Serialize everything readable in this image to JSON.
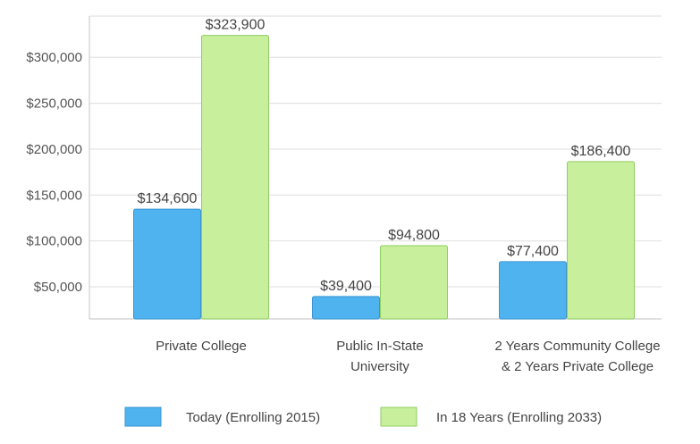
{
  "chart_data": {
    "type": "bar",
    "categories": [
      [
        "Private College"
      ],
      [
        "Public In-State",
        "University"
      ],
      [
        "2 Years Community College",
        "& 2 Years Private College"
      ]
    ],
    "series": [
      {
        "name": "Today (Enrolling 2015)",
        "color": "#4fb3f0",
        "stroke": "#3a95d0",
        "values": [
          134600,
          39400,
          77400
        ],
        "labels": [
          "$134,600",
          "$39,400",
          "$77,400"
        ]
      },
      {
        "name": "In 18 Years (Enrolling 2033)",
        "color": "#c7ef9c",
        "stroke": "#8fcc62",
        "values": [
          323900,
          94800,
          186400
        ],
        "labels": [
          "$323,900",
          "$94,800",
          "$186,400"
        ]
      }
    ],
    "yticks": [
      50000,
      100000,
      150000,
      200000,
      250000,
      300000
    ],
    "ytick_labels": [
      "$50,000",
      "$100,000",
      "$150,000",
      "$200,000",
      "$250,000",
      "$300,000"
    ],
    "ylim": [
      15000,
      345000
    ],
    "grid": true,
    "legend_position": "bottom",
    "title": "",
    "xlabel": "",
    "ylabel": ""
  }
}
